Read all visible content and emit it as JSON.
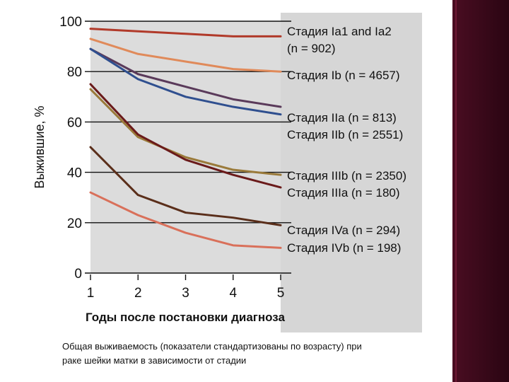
{
  "caption": "Общая выживаемость (показатели стандартизованы по возрасту) при раке шейки матки в зависимости от стадии",
  "chart_data": {
    "type": "line",
    "ylabel": "Выжившие, %",
    "xlabel": "Годы после постановки диагноза",
    "x": [
      1,
      2,
      3,
      4,
      5
    ],
    "xticks": [
      1,
      2,
      3,
      4,
      5
    ],
    "yticks": [
      0,
      20,
      40,
      60,
      80,
      100
    ],
    "xlim": [
      1,
      5
    ],
    "ylim": [
      0,
      100
    ],
    "grid": "horizontal",
    "series": [
      {
        "name": "Стадия Ia1 and Ia2",
        "n_label": "(n = 902)",
        "color": "#b13a2a",
        "values": [
          97,
          96,
          95,
          94,
          94
        ]
      },
      {
        "name": "Стадия Ib",
        "n_label": "(n = 4657)",
        "color": "#e08a5a",
        "values": [
          93,
          87,
          84,
          81,
          80
        ]
      },
      {
        "name": "Стадия IIa",
        "n_label": "(n = 813)",
        "color": "#5a3a5a",
        "values": [
          89,
          79,
          74,
          69,
          66
        ]
      },
      {
        "name": "Стадия IIb",
        "n_label": "(n = 2551)",
        "color": "#2f4f8f",
        "values": [
          89,
          77,
          70,
          66,
          63
        ]
      },
      {
        "name": "Стадия IIIb",
        "n_label": "(n = 2350)",
        "color": "#9a7a3a",
        "values": [
          73,
          54,
          46,
          41,
          39
        ]
      },
      {
        "name": "Стадия IIIa",
        "n_label": "(n = 180)",
        "color": "#6a1a1a",
        "values": [
          75,
          55,
          45,
          39,
          34
        ]
      },
      {
        "name": "Стадия IVa",
        "n_label": "(n = 294)",
        "color": "#5a2e1a",
        "values": [
          50,
          31,
          24,
          22,
          19
        ]
      },
      {
        "name": "Стадия IVb",
        "n_label": "(n = 198)",
        "color": "#d9705a",
        "values": [
          32,
          23,
          16,
          11,
          10
        ]
      }
    ]
  }
}
